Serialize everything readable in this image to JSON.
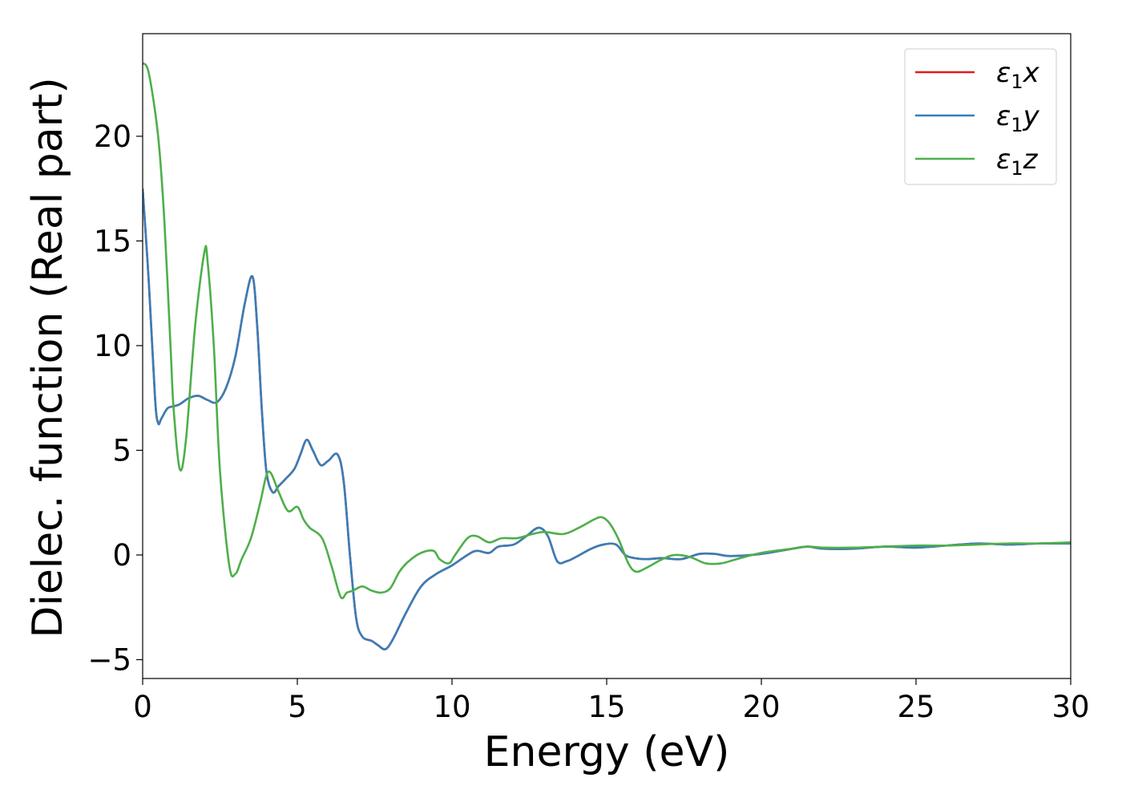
{
  "chart_data": {
    "type": "line",
    "xlabel": "Energy (eV)",
    "ylabel": "Dielec. function (Real part)",
    "xlim": [
      0,
      30
    ],
    "ylim": [
      -5.9,
      24.9
    ],
    "xticks": [
      0,
      5,
      10,
      15,
      20,
      25,
      30
    ],
    "yticks": [
      -5,
      0,
      5,
      10,
      15,
      20
    ],
    "xtick_labels": [
      "0",
      "5",
      "10",
      "15",
      "20",
      "25",
      "30"
    ],
    "ytick_labels": [
      "−5",
      "0",
      "5",
      "10",
      "15",
      "20"
    ],
    "grid": false,
    "legend_position": "top-right",
    "legend": [
      {
        "base": "ε",
        "sub": "1",
        "axis": "x",
        "color": "#e41a1c"
      },
      {
        "base": "ε",
        "sub": "1",
        "axis": "y",
        "color": "#377eb8"
      },
      {
        "base": "ε",
        "sub": "1",
        "axis": "z",
        "color": "#4daf4a"
      }
    ],
    "series": [
      {
        "name": "ε1x",
        "color": "#e41a1c",
        "x": [
          0,
          0.2,
          0.4,
          0.5,
          0.6,
          0.8,
          1.0,
          1.2,
          1.5,
          1.8,
          2.1,
          2.4,
          2.7,
          3.0,
          3.3,
          3.55,
          3.7,
          3.85,
          4.0,
          4.2,
          4.4,
          4.6,
          4.9,
          5.1,
          5.3,
          5.5,
          5.75,
          6.0,
          6.3,
          6.5,
          6.7,
          6.9,
          7.1,
          7.4,
          7.6,
          7.85,
          8.1,
          8.5,
          9.0,
          9.5,
          10.0,
          10.5,
          10.8,
          11.2,
          11.5,
          12.0,
          12.4,
          12.8,
          13.1,
          13.4,
          13.7,
          14.0,
          14.5,
          14.9,
          15.3,
          15.6,
          15.9,
          16.3,
          16.8,
          17.4,
          18.0,
          18.5,
          19.0,
          20.0,
          21.0,
          21.5,
          22.0,
          23.0,
          24.0,
          25.0,
          26.0,
          27.0,
          28.0,
          29.0,
          30.0
        ],
        "y": [
          17.5,
          13.0,
          7.5,
          6.3,
          6.5,
          7.0,
          7.1,
          7.2,
          7.5,
          7.6,
          7.4,
          7.3,
          8.0,
          9.5,
          12.0,
          13.3,
          11.0,
          7.0,
          4.0,
          3.0,
          3.3,
          3.6,
          4.1,
          4.8,
          5.5,
          5.0,
          4.3,
          4.5,
          4.8,
          3.5,
          0.0,
          -3.0,
          -3.9,
          -4.1,
          -4.3,
          -4.5,
          -4.0,
          -2.8,
          -1.5,
          -0.9,
          -0.5,
          0.0,
          0.2,
          0.1,
          0.4,
          0.5,
          0.9,
          1.3,
          0.9,
          -0.3,
          -0.3,
          -0.1,
          0.3,
          0.5,
          0.5,
          0.0,
          -0.15,
          -0.2,
          -0.15,
          -0.2,
          0.05,
          0.05,
          -0.05,
          0.05,
          0.3,
          0.4,
          0.3,
          0.3,
          0.4,
          0.35,
          0.45,
          0.55,
          0.5,
          0.55,
          0.55
        ]
      },
      {
        "name": "ε1y",
        "color": "#377eb8",
        "x": [
          0,
          0.2,
          0.4,
          0.5,
          0.6,
          0.8,
          1.0,
          1.2,
          1.5,
          1.8,
          2.1,
          2.4,
          2.7,
          3.0,
          3.3,
          3.55,
          3.7,
          3.85,
          4.0,
          4.2,
          4.4,
          4.6,
          4.9,
          5.1,
          5.3,
          5.5,
          5.75,
          6.0,
          6.3,
          6.5,
          6.7,
          6.9,
          7.1,
          7.4,
          7.6,
          7.85,
          8.1,
          8.5,
          9.0,
          9.5,
          10.0,
          10.5,
          10.8,
          11.2,
          11.5,
          12.0,
          12.4,
          12.8,
          13.1,
          13.4,
          13.7,
          14.0,
          14.5,
          14.9,
          15.3,
          15.6,
          15.9,
          16.3,
          16.8,
          17.4,
          18.0,
          18.5,
          19.0,
          20.0,
          21.0,
          21.5,
          22.0,
          23.0,
          24.0,
          25.0,
          26.0,
          27.0,
          28.0,
          29.0,
          30.0
        ],
        "y": [
          17.5,
          13.0,
          7.5,
          6.3,
          6.5,
          7.0,
          7.1,
          7.2,
          7.5,
          7.6,
          7.4,
          7.3,
          8.0,
          9.5,
          12.0,
          13.3,
          11.0,
          7.0,
          4.0,
          3.0,
          3.3,
          3.6,
          4.1,
          4.8,
          5.5,
          5.0,
          4.3,
          4.5,
          4.8,
          3.5,
          0.0,
          -3.0,
          -3.9,
          -4.1,
          -4.3,
          -4.5,
          -4.0,
          -2.8,
          -1.5,
          -0.9,
          -0.5,
          0.0,
          0.2,
          0.1,
          0.4,
          0.5,
          0.9,
          1.3,
          0.9,
          -0.3,
          -0.3,
          -0.1,
          0.3,
          0.5,
          0.5,
          0.0,
          -0.15,
          -0.2,
          -0.15,
          -0.2,
          0.05,
          0.05,
          -0.05,
          0.05,
          0.3,
          0.4,
          0.3,
          0.3,
          0.4,
          0.35,
          0.45,
          0.55,
          0.5,
          0.55,
          0.55
        ]
      },
      {
        "name": "ε1z",
        "color": "#4daf4a",
        "x": [
          0,
          0.2,
          0.5,
          0.7,
          0.9,
          1.0,
          1.2,
          1.4,
          1.7,
          2.0,
          2.1,
          2.3,
          2.5,
          2.8,
          3.0,
          3.2,
          3.5,
          3.8,
          4.0,
          4.15,
          4.4,
          4.7,
          5.0,
          5.2,
          5.4,
          5.8,
          6.1,
          6.4,
          6.6,
          6.8,
          7.1,
          7.4,
          7.7,
          8.0,
          8.3,
          8.6,
          9.0,
          9.4,
          9.6,
          9.9,
          10.1,
          10.5,
          10.8,
          11.2,
          11.6,
          12.1,
          12.6,
          13.0,
          13.6,
          14.1,
          14.6,
          14.85,
          15.1,
          15.4,
          15.7,
          15.95,
          16.3,
          16.8,
          17.2,
          17.7,
          18.2,
          18.7,
          19.2,
          20.0,
          21.0,
          21.5,
          22.0,
          23.0,
          24.0,
          25.0,
          26.0,
          27.0,
          28.0,
          29.0,
          30.0
        ],
        "y": [
          23.5,
          23.0,
          20.0,
          16.0,
          10.0,
          7.0,
          4.1,
          5.5,
          11.0,
          14.5,
          14.0,
          10.0,
          4.0,
          -0.5,
          -0.9,
          -0.2,
          0.8,
          2.5,
          3.8,
          3.9,
          3.0,
          2.1,
          2.3,
          1.7,
          1.3,
          0.8,
          -0.5,
          -2.0,
          -1.8,
          -1.7,
          -1.5,
          -1.7,
          -1.8,
          -1.6,
          -0.8,
          -0.3,
          0.1,
          0.2,
          -0.2,
          -0.4,
          0.0,
          0.8,
          0.9,
          0.6,
          0.8,
          0.8,
          1.0,
          1.1,
          1.0,
          1.3,
          1.7,
          1.8,
          1.5,
          0.7,
          -0.4,
          -0.8,
          -0.6,
          -0.2,
          0.0,
          -0.1,
          -0.4,
          -0.4,
          -0.2,
          0.1,
          0.3,
          0.4,
          0.35,
          0.35,
          0.4,
          0.45,
          0.45,
          0.5,
          0.55,
          0.55,
          0.6
        ]
      }
    ]
  }
}
